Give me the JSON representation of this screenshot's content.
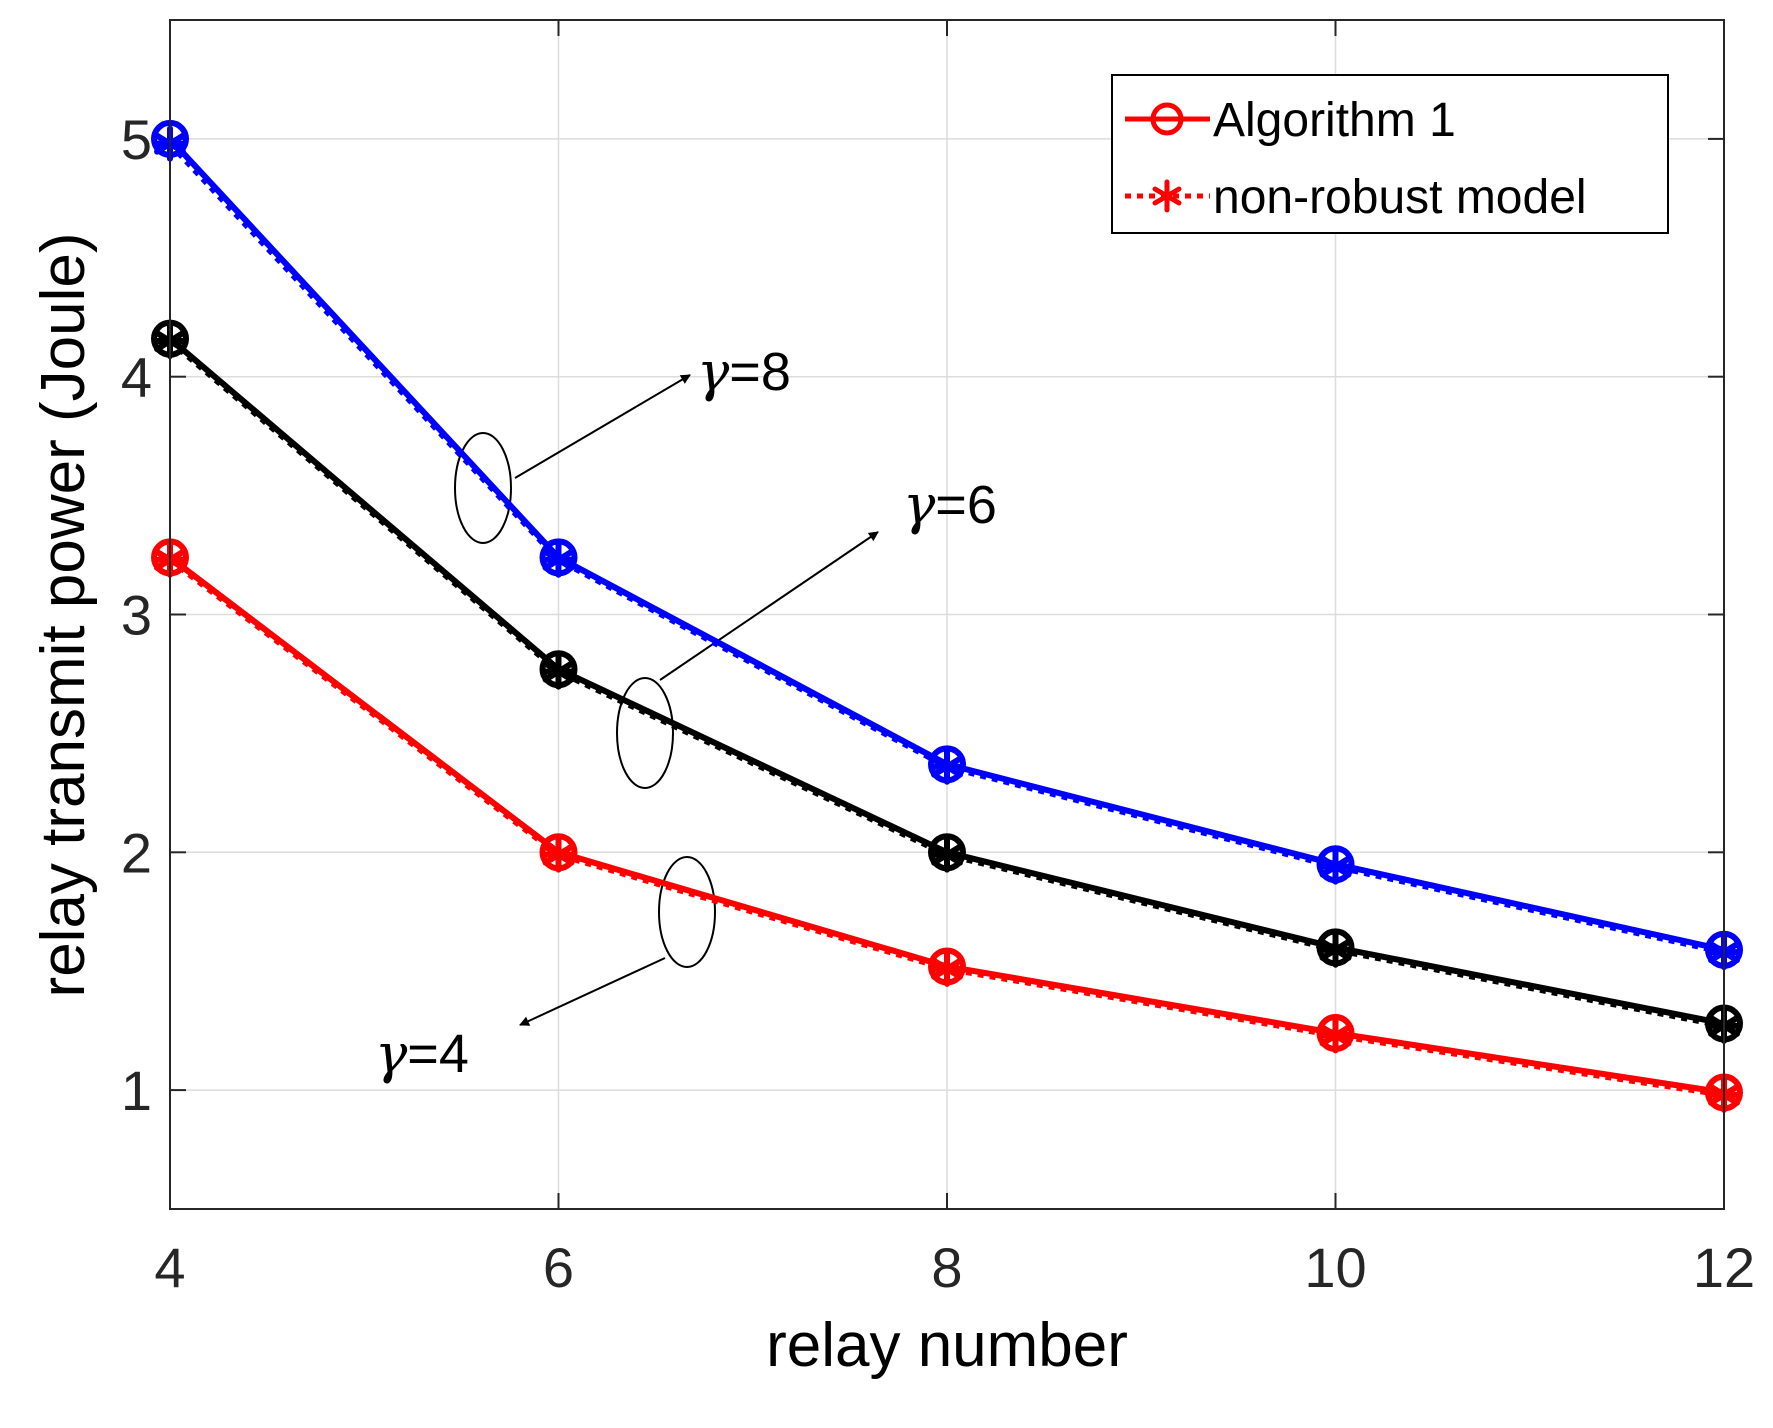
{
  "chart_data": {
    "type": "line",
    "title": "",
    "xlabel": "relay number",
    "ylabel": "relay transmit power (Joule)",
    "x": [
      4,
      6,
      8,
      10,
      12
    ],
    "xlim": [
      4,
      12
    ],
    "ylim": [
      0.5,
      5.5
    ],
    "xticks": [
      4,
      6,
      8,
      10,
      12
    ],
    "yticks": [
      1,
      2,
      3,
      4,
      5
    ],
    "grid": true,
    "legend_position": "top-right",
    "legend": [
      {
        "label": "Algorithm 1",
        "marker": "circle",
        "line": "solid"
      },
      {
        "label": "non-robust model",
        "marker": "asterisk",
        "line": "dotted"
      }
    ],
    "series": [
      {
        "name": "Algorithm 1, γ=8",
        "color": "#0000ff",
        "values": [
          5.0,
          3.24,
          2.37,
          1.95,
          1.59
        ]
      },
      {
        "name": "non-robust model, γ=8",
        "color": "#0000ff",
        "values": [
          4.98,
          3.23,
          2.36,
          1.94,
          1.58
        ]
      },
      {
        "name": "Algorithm 1, γ=6",
        "color": "#000000",
        "values": [
          4.16,
          2.77,
          2.0,
          1.6,
          1.28
        ]
      },
      {
        "name": "non-robust model, γ=6",
        "color": "#000000",
        "values": [
          4.15,
          2.76,
          1.99,
          1.59,
          1.27
        ]
      },
      {
        "name": "Algorithm 1, γ=4",
        "color": "#ff0000",
        "values": [
          3.24,
          2.0,
          1.52,
          1.24,
          0.99
        ]
      },
      {
        "name": "non-robust model, γ=4",
        "color": "#ff0000",
        "values": [
          3.23,
          1.99,
          1.51,
          1.23,
          0.98
        ]
      }
    ],
    "annotations": [
      {
        "gamma": "γ",
        "text": "=8",
        "points_to": "blue curves"
      },
      {
        "gamma": "γ",
        "text": "=6",
        "points_to": "black curves"
      },
      {
        "gamma": "γ",
        "text": "=4",
        "points_to": "red curves"
      }
    ]
  }
}
